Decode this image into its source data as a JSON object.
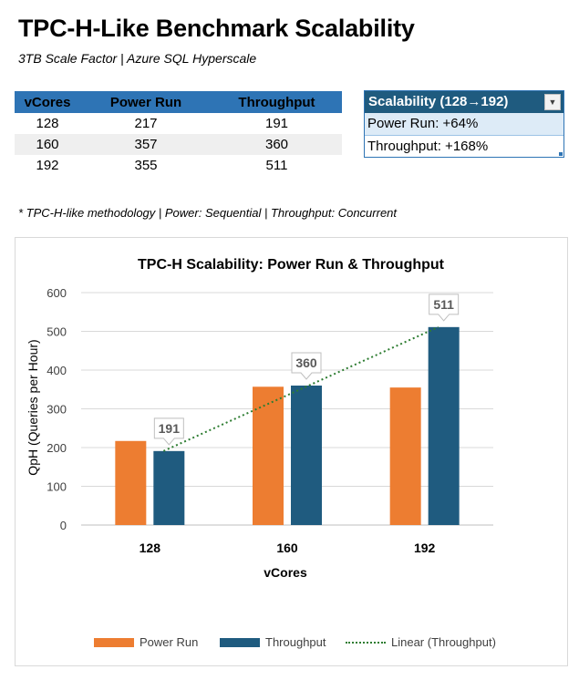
{
  "header": {
    "title": "TPC-H-Like Benchmark Scalability",
    "subtitle": "3TB Scale Factor | Azure SQL Hyperscale"
  },
  "table": {
    "columns": [
      "vCores",
      "Power Run",
      "Throughput"
    ],
    "rows": [
      [
        "128",
        "217",
        "191"
      ],
      [
        "160",
        "357",
        "360"
      ],
      [
        "192",
        "355",
        "511"
      ]
    ]
  },
  "scalability": {
    "header": "Scalability (128→192)",
    "power": "Power Run: +64%",
    "throughput": "Throughput: +168%"
  },
  "note": "* TPC-H-like methodology | Power: Sequential | Throughput: Concurrent",
  "colors": {
    "power": "#ed7d31",
    "throughput": "#1f5b7f",
    "trend": "#2e7d32",
    "header_blue": "#2e74b5"
  },
  "chart_data": {
    "type": "bar",
    "title": "TPC-H Scalability: Power Run & Throughput",
    "xlabel": "vCores",
    "ylabel": "QpH (Queries per Hour)",
    "categories": [
      "128",
      "160",
      "192"
    ],
    "ylim": [
      0,
      600
    ],
    "yticks": [
      "0",
      "100",
      "200",
      "300",
      "400",
      "500",
      "600"
    ],
    "series": [
      {
        "name": "Power Run",
        "values": [
          217,
          357,
          355
        ]
      },
      {
        "name": "Throughput",
        "values": [
          191,
          360,
          511
        ]
      }
    ],
    "data_labels": [
      "191",
      "360",
      "511"
    ],
    "trendline": {
      "name": "Linear (Throughput)",
      "from": 191,
      "to": 511
    },
    "grid": true,
    "legend": "bottom"
  }
}
